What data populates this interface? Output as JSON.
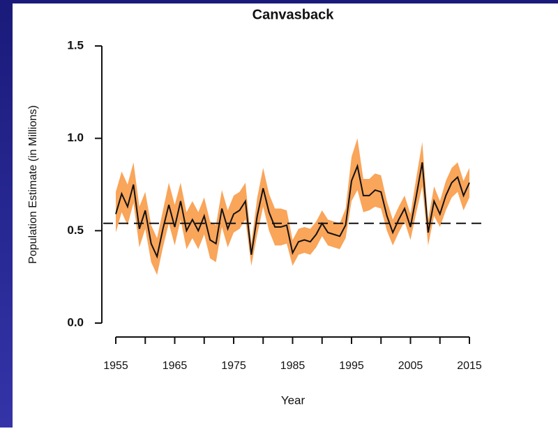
{
  "chart_data": {
    "type": "line",
    "title": "Canvasback",
    "x_label": "Year",
    "y_label": "Population Estimate (in Millions)",
    "x": [
      1955,
      1956,
      1957,
      1958,
      1959,
      1960,
      1961,
      1962,
      1963,
      1964,
      1965,
      1966,
      1967,
      1968,
      1969,
      1970,
      1971,
      1972,
      1973,
      1974,
      1975,
      1976,
      1977,
      1978,
      1979,
      1980,
      1981,
      1982,
      1983,
      1984,
      1985,
      1986,
      1987,
      1988,
      1989,
      1990,
      1991,
      1992,
      1993,
      1994,
      1995,
      1996,
      1997,
      1998,
      1999,
      2000,
      2001,
      2002,
      2003,
      2004,
      2005,
      2006,
      2007,
      2008,
      2009,
      2010,
      2011,
      2012,
      2013,
      2014,
      2015
    ],
    "values": [
      0.59,
      0.7,
      0.63,
      0.75,
      0.51,
      0.61,
      0.43,
      0.36,
      0.51,
      0.64,
      0.52,
      0.66,
      0.5,
      0.56,
      0.5,
      0.58,
      0.45,
      0.43,
      0.62,
      0.51,
      0.59,
      0.61,
      0.66,
      0.37,
      0.58,
      0.73,
      0.6,
      0.52,
      0.52,
      0.53,
      0.38,
      0.44,
      0.45,
      0.44,
      0.48,
      0.54,
      0.49,
      0.48,
      0.47,
      0.53,
      0.77,
      0.85,
      0.69,
      0.69,
      0.72,
      0.71,
      0.58,
      0.49,
      0.56,
      0.62,
      0.52,
      0.69,
      0.87,
      0.49,
      0.66,
      0.59,
      0.69,
      0.76,
      0.79,
      0.69,
      0.76
    ],
    "lower": [
      0.49,
      0.6,
      0.53,
      0.65,
      0.41,
      0.51,
      0.33,
      0.26,
      0.41,
      0.54,
      0.42,
      0.56,
      0.4,
      0.46,
      0.4,
      0.48,
      0.35,
      0.33,
      0.52,
      0.41,
      0.49,
      0.51,
      0.56,
      0.31,
      0.48,
      0.63,
      0.5,
      0.42,
      0.42,
      0.43,
      0.31,
      0.37,
      0.38,
      0.37,
      0.41,
      0.47,
      0.42,
      0.41,
      0.4,
      0.46,
      0.66,
      0.72,
      0.6,
      0.61,
      0.63,
      0.62,
      0.5,
      0.42,
      0.49,
      0.55,
      0.45,
      0.6,
      0.74,
      0.42,
      0.58,
      0.52,
      0.61,
      0.68,
      0.71,
      0.61,
      0.68
    ],
    "upper": [
      0.71,
      0.82,
      0.75,
      0.87,
      0.63,
      0.71,
      0.53,
      0.46,
      0.61,
      0.76,
      0.64,
      0.76,
      0.6,
      0.66,
      0.6,
      0.68,
      0.55,
      0.53,
      0.72,
      0.61,
      0.69,
      0.71,
      0.76,
      0.43,
      0.68,
      0.84,
      0.7,
      0.62,
      0.62,
      0.61,
      0.45,
      0.51,
      0.52,
      0.51,
      0.55,
      0.61,
      0.56,
      0.55,
      0.54,
      0.62,
      0.9,
      1.0,
      0.78,
      0.78,
      0.81,
      0.8,
      0.66,
      0.56,
      0.63,
      0.69,
      0.59,
      0.79,
      0.98,
      0.56,
      0.74,
      0.66,
      0.77,
      0.84,
      0.87,
      0.77,
      0.84
    ],
    "color": "#111111",
    "band_color": "#f9a55a",
    "reference_line": 0.54,
    "xlim": [
      1955,
      2015
    ],
    "xticks": [
      1955,
      1965,
      1975,
      1985,
      1995,
      2005,
      2015
    ],
    "xminorticks": [
      1960,
      1970,
      1980,
      1990,
      2000,
      2010
    ],
    "ylim": [
      0,
      1.5
    ],
    "yticks": [
      {
        "value": 0,
        "label": "0.0"
      },
      0.5,
      {
        "value": 1,
        "label": "1.0"
      },
      1.5
    ]
  }
}
